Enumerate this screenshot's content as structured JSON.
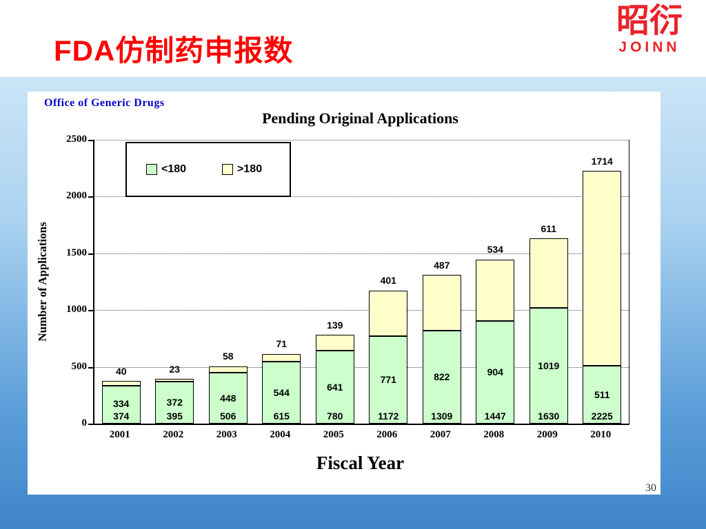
{
  "slide": {
    "title": "FDA仿制药申报数",
    "page_number": "30"
  },
  "logo": {
    "chars": "昭衍",
    "text": "JOINN"
  },
  "chart_data": {
    "type": "bar",
    "stacked": true,
    "title": "Pending Original Applications",
    "source_label": "Office of Generic Drugs",
    "xlabel": "Fiscal Year",
    "ylabel": "Number of Applications",
    "ylim": [
      0,
      2500
    ],
    "yticks": [
      0,
      500,
      1000,
      1500,
      2000,
      2500
    ],
    "grid": "dotted-horizontal",
    "legend_position": "top-left-inside",
    "categories": [
      "2001",
      "2002",
      "2003",
      "2004",
      "2005",
      "2006",
      "2007",
      "2008",
      "2009",
      "2010"
    ],
    "series": [
      {
        "name": "<180",
        "color": "#ccffcc",
        "values": [
          334,
          372,
          448,
          544,
          641,
          771,
          822,
          904,
          1019,
          511
        ]
      },
      {
        "name": ">180",
        "color": "#ffffcc",
        "values": [
          40,
          23,
          58,
          71,
          139,
          401,
          487,
          534,
          611,
          1714
        ]
      }
    ],
    "totals": [
      374,
      395,
      506,
      615,
      780,
      1172,
      1309,
      1447,
      1630,
      2225
    ]
  }
}
